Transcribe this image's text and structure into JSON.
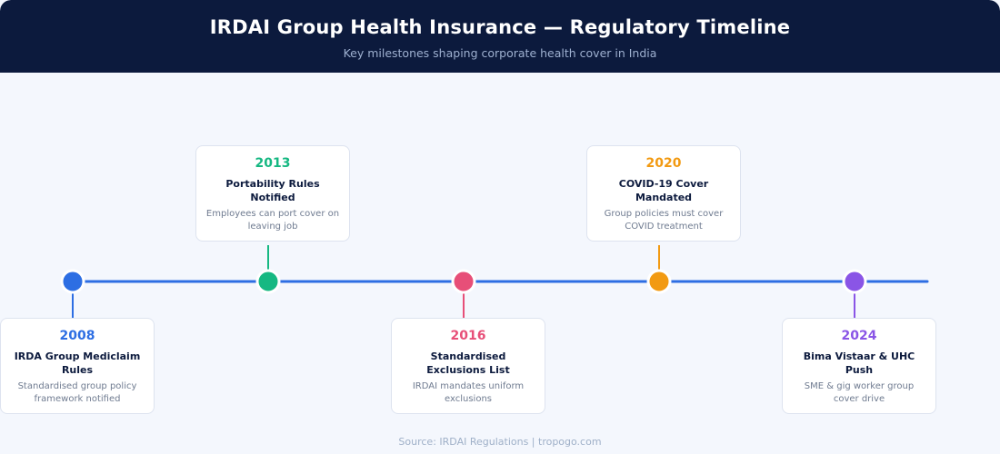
{
  "header": {
    "title": "IRDAI Group Health Insurance — Regulatory Timeline",
    "subtitle": "Key milestones shaping corporate health cover in India"
  },
  "colors": {
    "line": "#2d6ee3",
    "header_bg": "#0c1a3d"
  },
  "milestones": [
    {
      "year": "2008",
      "title": "IRDA Group Mediclaim Rules",
      "description": "Standardised group policy framework notified",
      "color": "#2d6ee3",
      "position": "below"
    },
    {
      "year": "2013",
      "title": "Portability Rules Notified",
      "description": "Employees can port cover on leaving job",
      "color": "#16b882",
      "position": "above"
    },
    {
      "year": "2016",
      "title": "Standardised Exclusions List",
      "description": "IRDAI mandates uniform exclusions",
      "color": "#e74f78",
      "position": "below"
    },
    {
      "year": "2020",
      "title": "COVID-19 Cover Mandated",
      "description": "Group policies must cover COVID treatment",
      "color": "#f29a12",
      "position": "above"
    },
    {
      "year": "2024",
      "title": "Bima Vistaar & UHC Push",
      "description": "SME & gig worker group cover drive",
      "color": "#8a55e6",
      "position": "below"
    }
  ],
  "footer": {
    "source": "Source: IRDAI Regulations | tropogo.com"
  }
}
